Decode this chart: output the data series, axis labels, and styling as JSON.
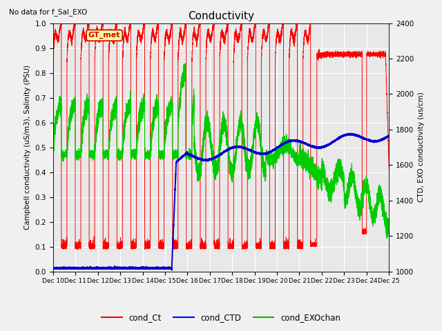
{
  "title": "Conductivity",
  "subtitle": "No data for f_Sal_EXO",
  "ylabel_left": "Campbell conductivity (uS/m3), Salinity (PSU)",
  "ylabel_right": "CTD, EXO conductivity (us/cm)",
  "ylim_left": [
    0.0,
    1.0
  ],
  "ylim_right": [
    1000,
    2400
  ],
  "yticks_left": [
    0.0,
    0.1,
    0.2,
    0.3,
    0.4,
    0.5,
    0.6,
    0.7,
    0.8,
    0.9,
    1.0
  ],
  "yticks_right": [
    1000,
    1200,
    1400,
    1600,
    1800,
    2000,
    2200,
    2400
  ],
  "legend_labels": [
    "cond_Ct",
    "cond_CTD",
    "cond_EXOchan"
  ],
  "legend_colors": [
    "#ff0000",
    "#0000ff",
    "#00bb00"
  ],
  "color_cond_Ct": "#ff0000",
  "color_cond_CTD": "#0000cc",
  "color_cond_EXO": "#00cc00",
  "gt_met_label": "GT_met",
  "gt_met_color": "#cc0000",
  "gt_met_bg": "#ffff99",
  "plot_bg": "#e8e8e8",
  "fig_bg": "#f0f0f0",
  "xtick_labels": [
    "Dec 10",
    "Dec 11",
    "Dec 12",
    "Dec 13",
    "Dec 14",
    "Dec 15",
    "Dec 16",
    "Dec 17",
    "Dec 18",
    "Dec 19",
    "Dec 20",
    "Dec 21",
    "Dec 22",
    "Dec 23",
    "Dec 24",
    "Dec 25"
  ]
}
